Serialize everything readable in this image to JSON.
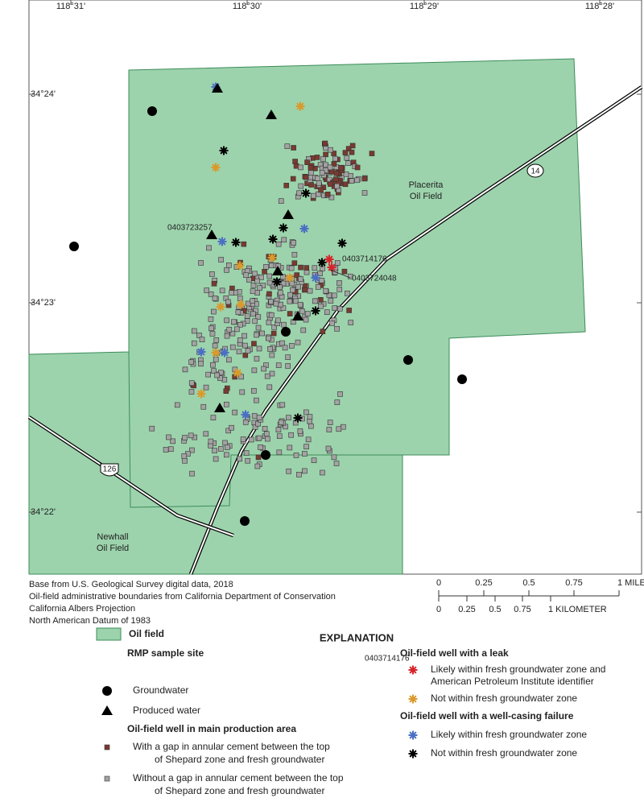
{
  "map": {
    "longitude_labels": [
      "118°31'",
      "118°30'",
      "118°29'",
      "118°28'"
    ],
    "latitude_labels": [
      "34°24'",
      "34°23'",
      "34°22'"
    ],
    "placerita_label": [
      "Placerita",
      "Oil Field"
    ],
    "newhall_label": [
      "Newhall",
      "Oil Field"
    ],
    "well_ids": [
      "0403723257",
      "0403714176",
      "0403724048"
    ],
    "route_labels": [
      "14",
      "126"
    ]
  },
  "credits": [
    "Base from U.S. Geological Survey digital data, 2018",
    "Oil-field administrative boundaries from California Department of Conservation",
    "California Albers Projection",
    "North American Datum of 1983"
  ],
  "scale_bar": {
    "miles": [
      "0",
      "0.25",
      "0.5",
      "0.75",
      "1 MILE"
    ],
    "kilometers": [
      "0",
      "0.25",
      "0.5",
      "0.75",
      "1 KILOMETER"
    ]
  },
  "legend": {
    "title": "EXPLANATION",
    "oil_field": "Oil field",
    "rmp_heading": "RMP sample site",
    "groundwater": "Groundwater",
    "produced_water": "Produced water",
    "well_heading": "Oil-field well in main production area",
    "with_gap": [
      "With a gap in annular cement between the top",
      "of Shepard zone and fresh groundwater"
    ],
    "without_gap": [
      "Without a gap in annular cement between the top",
      "of Shepard zone and fresh groundwater"
    ],
    "leak_heading": "Oil-field well with a leak",
    "example_id": "0403714176",
    "leak_likely": [
      "Likely within fresh groundwater zone and",
      "American Petroleum Institute identifier"
    ],
    "leak_not": "Not within fresh groundwater zone",
    "casing_heading": "Oil-field well with a well-casing failure",
    "casing_likely": "Likely within fresh groundwater zone",
    "casing_not": "Not within fresh groundwater zone"
  }
}
